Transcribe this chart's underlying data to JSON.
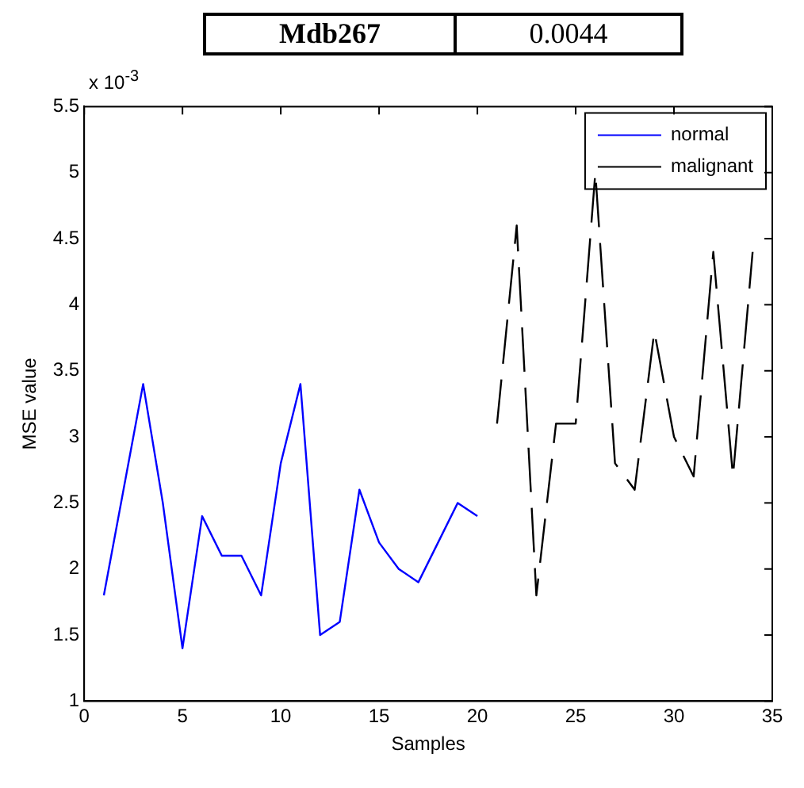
{
  "chart_data": {
    "type": "line",
    "xlabel": "Samples",
    "ylabel": "MSE value",
    "annotations": [
      "Mdb267",
      "0.0044",
      "x 10$^{-3}$"
    ],
    "xlim": [
      0,
      35
    ],
    "xticks": [
      0,
      5,
      10,
      15,
      20,
      25,
      30,
      35
    ],
    "ylim": [
      1,
      5.5
    ],
    "yticks": [
      1,
      1.5,
      2,
      2.5,
      3,
      3.5,
      4,
      4.5,
      5,
      5.5
    ],
    "grid": false,
    "legend": "top right",
    "series": [
      {
        "name": "normal",
        "color": "#0000ff",
        "line_style": "solid",
        "x": [
          1,
          2,
          3,
          4,
          5,
          6,
          7,
          8,
          9,
          10,
          11,
          12,
          13,
          14,
          15,
          16,
          17,
          18,
          19,
          20
        ],
        "values": [
          1.8,
          2.6,
          3.4,
          2.5,
          1.4,
          2.4,
          2.1,
          2.1,
          1.8,
          2.8,
          3.4,
          1.5,
          1.6,
          2.6,
          2.2,
          2.0,
          1.9,
          2.2,
          2.5,
          2.4
        ]
      },
      {
        "name": "malignant",
        "color": "#000000",
        "line_style": "dashed",
        "x": [
          21,
          22,
          23,
          24,
          25,
          26,
          27,
          28,
          29,
          30,
          31,
          32,
          33,
          34
        ],
        "values": [
          3.1,
          4.6,
          1.8,
          3.1,
          3.1,
          5.0,
          2.8,
          2.6,
          3.8,
          3.0,
          2.7,
          4.4,
          2.7,
          4.4
        ]
      }
    ]
  }
}
